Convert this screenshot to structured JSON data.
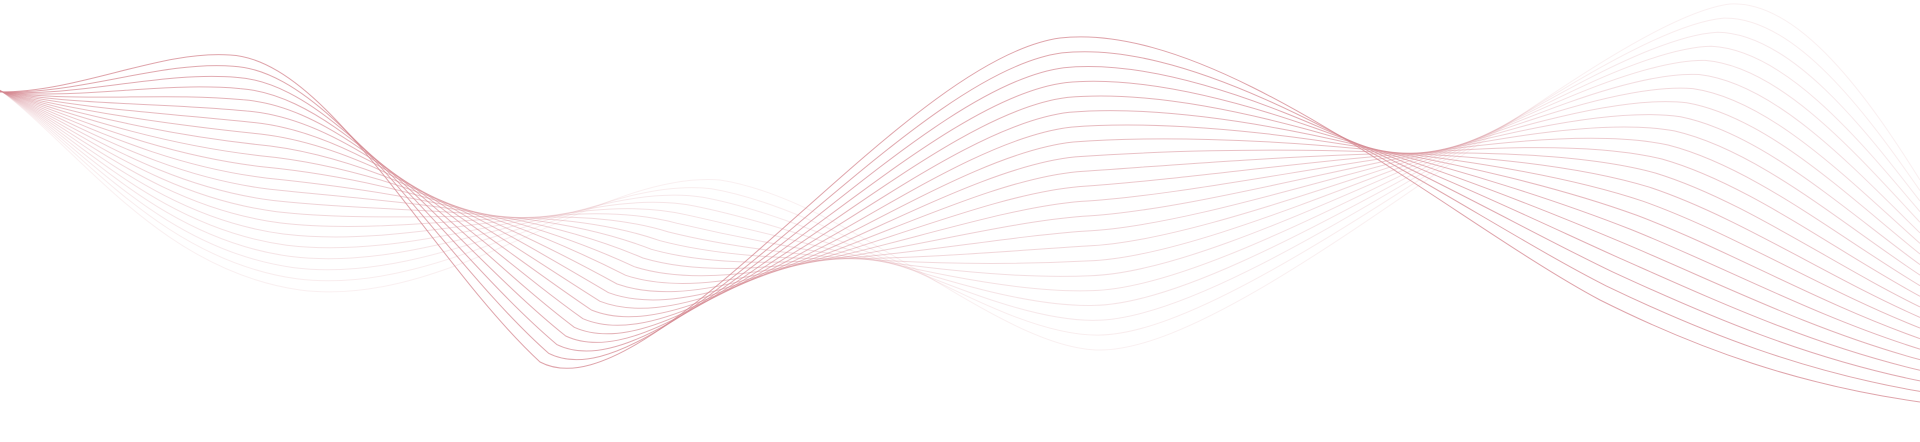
{
  "decoration": {
    "type": "wave-lines-background",
    "stroke_color": "#d4868f",
    "line_count": 22,
    "opacity_range": [
      0.12,
      0.75
    ]
  }
}
